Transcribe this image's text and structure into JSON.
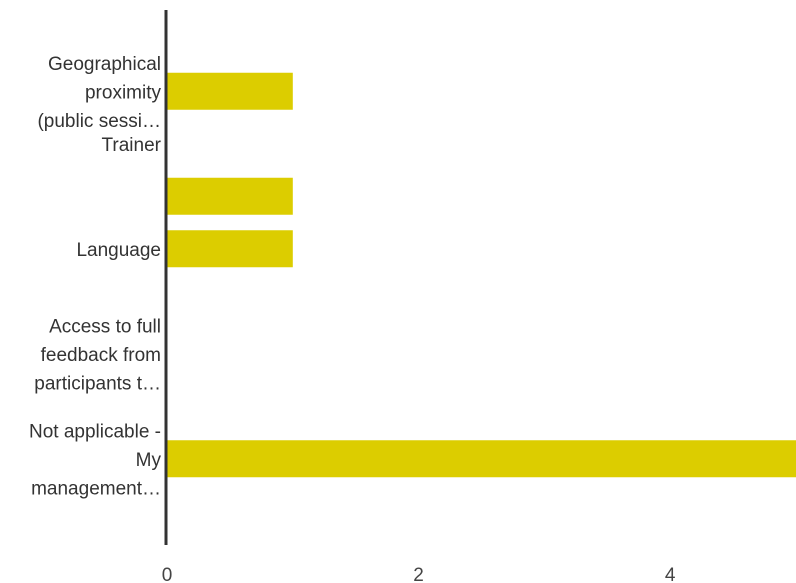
{
  "chart_data": {
    "type": "bar",
    "orientation": "horizontal",
    "bar_color": "#dccd00",
    "axis_color": "#333333",
    "grid": false,
    "xlim": [
      0,
      5
    ],
    "x_ticks": [
      0,
      2,
      4
    ],
    "rows": [
      {
        "label_lines": [
          "Geographical",
          "proximity",
          "(public sessi…"
        ],
        "value": 1
      },
      {
        "label_lines": [
          "Trainer"
        ],
        "value": 0
      },
      {
        "label_lines": [],
        "value": 1
      },
      {
        "label_lines": [
          "Language"
        ],
        "value": 1
      },
      {
        "label_lines": [],
        "value": 0
      },
      {
        "label_lines": [
          "Access to full",
          "feedback from",
          "participants t…"
        ],
        "value": 0
      },
      {
        "label_lines": [],
        "value": 0
      },
      {
        "label_lines": [
          "Not applicable -",
          "My",
          "management…"
        ],
        "value": 5
      }
    ]
  }
}
